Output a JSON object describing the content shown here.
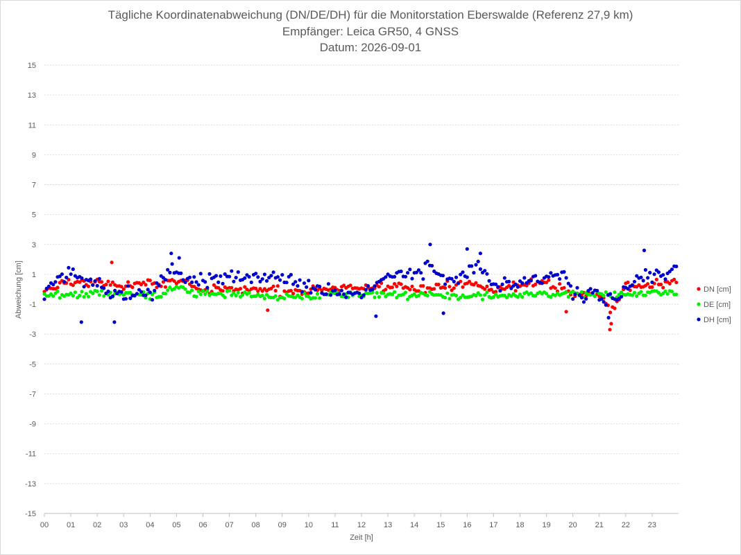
{
  "chart_data": {
    "type": "scatter",
    "title": "Tägliche Koordinatenabweichung (DN/DE/DH) für die Monitorstation Eberswalde (Referenz 27,9 km)",
    "subtitle": "Empfänger: Leica GR50, 4 GNSS",
    "date_line": "Datum: 2026-09-01",
    "xlabel": "Zeit [h]",
    "ylabel": "Abweichung [cm]",
    "xlim": [
      0,
      24
    ],
    "ylim": [
      -15,
      15
    ],
    "x_ticks": [
      "00",
      "01",
      "02",
      "03",
      "04",
      "05",
      "06",
      "07",
      "08",
      "09",
      "10",
      "11",
      "12",
      "13",
      "14",
      "15",
      "16",
      "17",
      "18",
      "19",
      "20",
      "21",
      "22",
      "23"
    ],
    "y_ticks": [
      15,
      13,
      11,
      9,
      7,
      5,
      3,
      1,
      -1,
      -3,
      -5,
      -7,
      -9,
      -11,
      -13,
      -15
    ],
    "grid": "horizontal dotted",
    "legend": "right",
    "samples_per_series": 288,
    "series": [
      {
        "name": "DN [cm]",
        "color": "#ff0000",
        "trend_x": [
          0,
          1,
          2,
          3,
          4,
          5,
          6,
          7,
          8,
          9,
          10,
          11,
          12,
          13,
          14,
          15,
          16,
          17,
          18,
          19,
          20,
          21,
          21.5,
          22,
          23,
          24
        ],
        "trend_y": [
          0,
          0.4,
          0.5,
          0.3,
          0.3,
          0.6,
          0,
          0,
          0,
          -0.2,
          -0.2,
          0.2,
          0,
          0.2,
          0,
          0.2,
          0.3,
          0,
          0.3,
          0.4,
          -0.3,
          -0.4,
          -1.5,
          0.2,
          0.3,
          0.5
        ]
      },
      {
        "name": "DE [cm]",
        "color": "#00ee00",
        "trend_x": [
          0,
          2,
          4,
          6,
          8,
          10,
          12,
          14,
          16,
          18,
          20,
          22,
          24
        ],
        "trend_y": [
          -0.4,
          -0.3,
          -0.4,
          -0.3,
          -0.4,
          -0.5,
          -0.3,
          -0.4,
          -0.5,
          -0.4,
          -0.3,
          -0.4,
          -0.2
        ],
        "ranges": [
          [
            4.6,
            5.6,
            0.0
          ]
        ]
      },
      {
        "name": "DH [cm]",
        "color": "#0000cc",
        "trend_x": [
          0,
          0.5,
          1,
          1.5,
          2,
          3,
          4,
          4.7,
          5.2,
          6,
          7,
          8,
          9,
          10,
          11,
          12,
          13,
          14,
          14.6,
          15.2,
          16,
          16.5,
          17,
          18,
          19,
          19.7,
          20,
          21,
          21.3,
          22,
          22.6,
          23,
          24
        ],
        "trend_y": [
          -0.3,
          0.8,
          0.9,
          0.6,
          0.4,
          -0.3,
          -0.5,
          1.2,
          0.9,
          0.6,
          0.9,
          0.8,
          0.8,
          0.1,
          -0.2,
          -0.4,
          0.9,
          1.0,
          1.6,
          0.5,
          1.2,
          1.6,
          0.3,
          0.3,
          0.8,
          1.2,
          -0.3,
          -0.4,
          -0.9,
          -0.2,
          1.0,
          0.8,
          1.3
        ]
      }
    ],
    "outliers": [
      {
        "series": 0,
        "x": 2.55,
        "y": 1.8
      },
      {
        "series": 0,
        "x": 8.45,
        "y": -1.4
      },
      {
        "series": 0,
        "x": 19.75,
        "y": -1.5
      },
      {
        "series": 0,
        "x": 21.4,
        "y": -2.7
      },
      {
        "series": 0,
        "x": 21.45,
        "y": -2.3
      },
      {
        "series": 2,
        "x": 1.4,
        "y": -2.2
      },
      {
        "series": 2,
        "x": 2.65,
        "y": -2.2
      },
      {
        "series": 2,
        "x": 4.8,
        "y": 2.4
      },
      {
        "series": 2,
        "x": 5.1,
        "y": 2.1
      },
      {
        "series": 2,
        "x": 12.55,
        "y": -1.8
      },
      {
        "series": 2,
        "x": 14.6,
        "y": 3.0
      },
      {
        "series": 2,
        "x": 15.1,
        "y": -1.6
      },
      {
        "series": 2,
        "x": 16.0,
        "y": 2.7
      },
      {
        "series": 2,
        "x": 16.5,
        "y": 2.4
      },
      {
        "series": 2,
        "x": 21.35,
        "y": -1.9
      },
      {
        "series": 2,
        "x": 22.7,
        "y": 2.6
      }
    ]
  }
}
